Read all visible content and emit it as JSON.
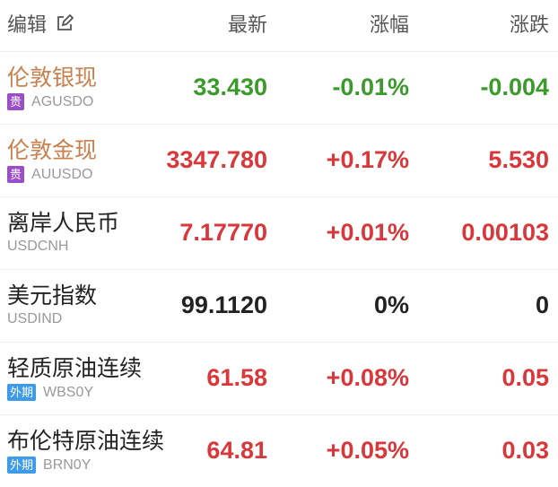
{
  "colors": {
    "up": "#d9373a",
    "down": "#3a9a2a",
    "flat": "#222222",
    "highlight_name": "#c8804f",
    "badge_precious": "#9a4fc8",
    "badge_foreign": "#3d9be9"
  },
  "header": {
    "edit": "编辑",
    "edit_icon": "pencil-edit-icon",
    "latest": "最新",
    "change_pct": "涨幅",
    "change": "涨跌"
  },
  "rows": [
    {
      "name": "伦敦银现",
      "badge": "贵",
      "badge_type": "precious",
      "code": "AGUSDO",
      "latest": "33.430",
      "pct": "-0.01%",
      "chg": "-0.004",
      "dir": "down",
      "hl": true
    },
    {
      "name": "伦敦金现",
      "badge": "贵",
      "badge_type": "precious",
      "code": "AUUSDO",
      "latest": "3347.780",
      "pct": "+0.17%",
      "chg": "5.530",
      "dir": "up",
      "hl": true
    },
    {
      "name": "离岸人民币",
      "badge": "",
      "code": "USDCNH",
      "latest": "7.17770",
      "pct": "+0.01%",
      "chg": "0.00103",
      "dir": "up",
      "hl": false
    },
    {
      "name": "美元指数",
      "badge": "",
      "code": "USDIND",
      "latest": "99.1120",
      "pct": "0%",
      "chg": "0",
      "dir": "flat",
      "hl": false
    },
    {
      "name": "轻质原油连续",
      "badge": "外期",
      "badge_type": "foreign",
      "code": "WBS0Y",
      "latest": "61.58",
      "pct": "+0.08%",
      "chg": "0.05",
      "dir": "up",
      "hl": false
    },
    {
      "name": "布伦特原油连续",
      "badge": "外期",
      "badge_type": "foreign",
      "code": "BRN0Y",
      "latest": "64.81",
      "pct": "+0.05%",
      "chg": "0.03",
      "dir": "up",
      "hl": false
    }
  ]
}
